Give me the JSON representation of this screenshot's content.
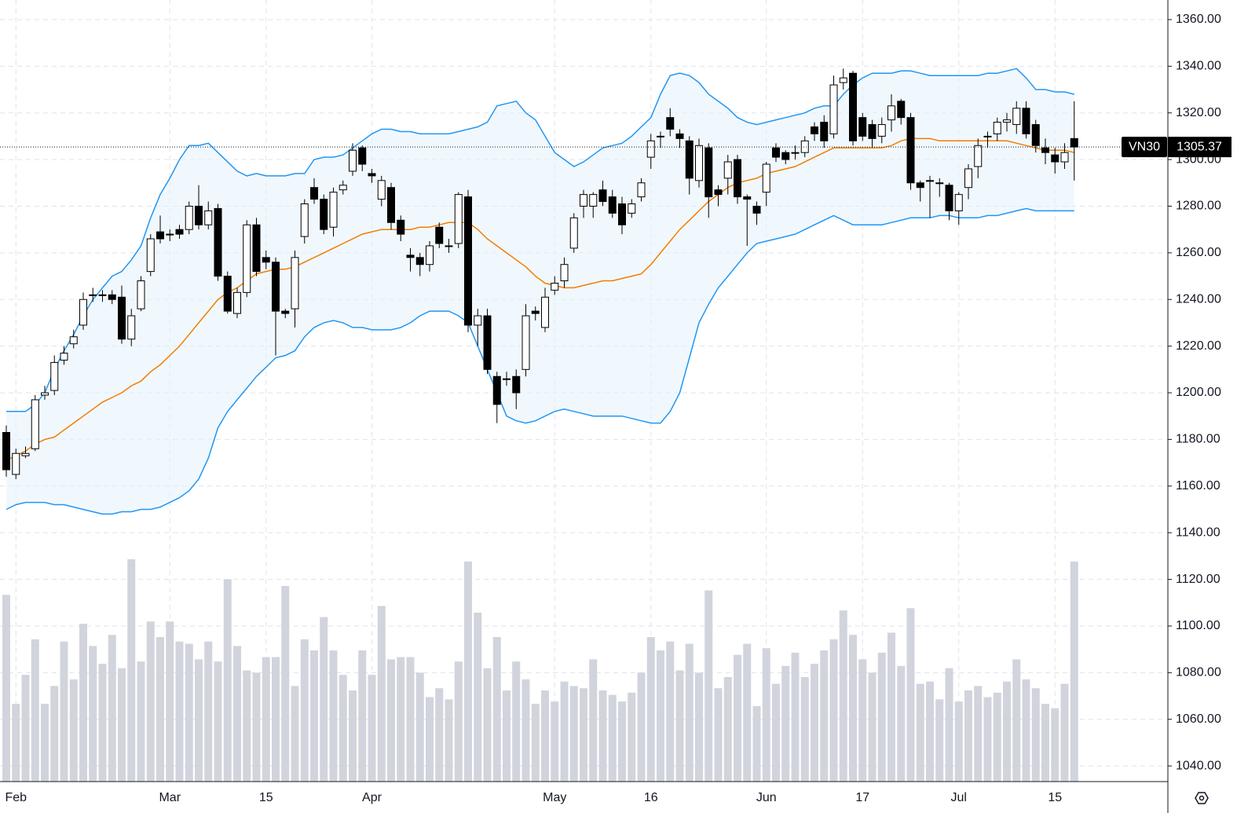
{
  "chart_data": {
    "type": "candlestick",
    "symbol": "VN30",
    "categories": [
      null,
      "Feb",
      null,
      null,
      null,
      null,
      null,
      null,
      null,
      null,
      null,
      null,
      null,
      null,
      null,
      null,
      null,
      "Mar",
      null,
      null,
      null,
      null,
      null,
      null,
      null,
      null,
      null,
      "15",
      null,
      null,
      null,
      null,
      null,
      null,
      null,
      null,
      null,
      null,
      "Apr",
      null,
      null,
      null,
      null,
      null,
      null,
      null,
      null,
      null,
      null,
      null,
      null,
      null,
      null,
      null,
      null,
      null,
      null,
      "May",
      null,
      null,
      null,
      null,
      null,
      null,
      null,
      null,
      null,
      "16",
      null,
      null,
      null,
      null,
      null,
      null,
      null,
      null,
      null,
      null,
      null,
      "Jun",
      null,
      null,
      null,
      null,
      null,
      null,
      null,
      null,
      null,
      "17",
      null,
      null,
      null,
      null,
      null,
      null,
      null,
      null,
      null,
      "Jul",
      null,
      null,
      null,
      null,
      null,
      null,
      null,
      null,
      null,
      "15",
      null,
      null
    ],
    "open": [
      1183,
      1165,
      1173,
      1176,
      1199,
      1201,
      1214,
      1221,
      1229,
      1242,
      1242,
      1242,
      1241,
      1223,
      1236,
      1252,
      1269,
      1268,
      1270,
      1270,
      1280,
      1272,
      1279,
      1250,
      1234,
      1243,
      1272,
      1258,
      1256,
      1235,
      1236,
      1267,
      1288,
      1283,
      1271,
      1287,
      1295,
      1305,
      1294,
      1283,
      1288,
      1274,
      1259,
      1258,
      1255,
      1271,
      1263,
      1264,
      1284,
      1229,
      1233,
      1207,
      1206,
      1207,
      1210,
      1235,
      1228,
      1244,
      1248,
      1262,
      1280,
      1280,
      1287,
      1284,
      1281,
      1277,
      1284,
      1301,
      1310,
      1318,
      1311,
      1308,
      1291,
      1305,
      1287,
      1292,
      1300,
      1284,
      1280,
      1286,
      1305,
      1303,
      1303,
      1303,
      1314,
      1316,
      1311,
      1333,
      1337,
      1318,
      1315,
      1310,
      1317,
      1325,
      1318,
      1290,
      1291,
      1290,
      1289,
      1278,
      1288,
      1297,
      1310,
      1311,
      1316,
      1315,
      1322,
      1315,
      1305,
      1302,
      1299,
      1309
    ],
    "high": [
      1186,
      1176,
      1177,
      1199,
      1203,
      1216,
      1220,
      1227,
      1243,
      1245,
      1244,
      1244,
      1246,
      1236,
      1250,
      1268,
      1276,
      1270,
      1272,
      1282,
      1289,
      1282,
      1281,
      1252,
      1245,
      1274,
      1275,
      1261,
      1258,
      1236,
      1261,
      1283,
      1292,
      1285,
      1288,
      1291,
      1307,
      1306,
      1296,
      1293,
      1290,
      1276,
      1262,
      1260,
      1265,
      1273,
      1266,
      1286,
      1287,
      1236,
      1236,
      1209,
      1209,
      1210,
      1238,
      1237,
      1245,
      1250,
      1258,
      1277,
      1287,
      1286,
      1291,
      1287,
      1284,
      1283,
      1292,
      1311,
      1312,
      1322,
      1313,
      1310,
      1309,
      1307,
      1289,
      1302,
      1302,
      1285,
      1282,
      1299,
      1307,
      1304,
      1306,
      1310,
      1316,
      1319,
      1336,
      1339,
      1338,
      1320,
      1317,
      1318,
      1328,
      1326,
      1320,
      1291,
      1293,
      1292,
      1290,
      1286,
      1298,
      1309,
      1312,
      1318,
      1320,
      1325,
      1325,
      1317,
      1309,
      1305,
      1307,
      1325
    ],
    "low": [
      1164,
      1163,
      1172,
      1175,
      1197,
      1199,
      1212,
      1219,
      1227,
      1239,
      1239,
      1238,
      1221,
      1220,
      1235,
      1250,
      1264,
      1265,
      1266,
      1268,
      1270,
      1270,
      1248,
      1234,
      1232,
      1241,
      1250,
      1253,
      1216,
      1232,
      1228,
      1264,
      1281,
      1268,
      1267,
      1285,
      1293,
      1295,
      1290,
      1280,
      1270,
      1265,
      1252,
      1250,
      1252,
      1262,
      1260,
      1262,
      1226,
      1220,
      1208,
      1187,
      1203,
      1193,
      1207,
      1231,
      1226,
      1242,
      1245,
      1260,
      1275,
      1275,
      1280,
      1275,
      1268,
      1275,
      1282,
      1296,
      1305,
      1310,
      1305,
      1285,
      1288,
      1275,
      1280,
      1285,
      1281,
      1263,
      1272,
      1280,
      1299,
      1298,
      1300,
      1301,
      1308,
      1305,
      1309,
      1330,
      1306,
      1308,
      1305,
      1307,
      1312,
      1315,
      1287,
      1282,
      1275,
      1284,
      1274,
      1272,
      1283,
      1292,
      1305,
      1308,
      1312,
      1311,
      1309,
      1303,
      1298,
      1294,
      1296,
      1291
    ],
    "close": [
      1167,
      1174,
      1174,
      1197,
      1200,
      1213,
      1217,
      1224,
      1240,
      1242,
      1242,
      1240,
      1223,
      1233,
      1248,
      1266,
      1266,
      1268,
      1268,
      1280,
      1272,
      1278,
      1250,
      1235,
      1243,
      1272,
      1252,
      1256,
      1235,
      1234,
      1258,
      1281,
      1283,
      1270,
      1286,
      1289,
      1304,
      1298,
      1293,
      1291,
      1273,
      1268,
      1258,
      1255,
      1263,
      1264,
      1263,
      1285,
      1229,
      1233,
      1210,
      1195,
      1206,
      1200,
      1233,
      1234,
      1241,
      1247,
      1255,
      1275,
      1285,
      1285,
      1282,
      1277,
      1272,
      1281,
      1290,
      1308,
      1310,
      1313,
      1309,
      1292,
      1306,
      1284,
      1285,
      1299,
      1284,
      1283,
      1277,
      1298,
      1301,
      1300,
      1303,
      1308,
      1311,
      1308,
      1332,
      1335,
      1308,
      1310,
      1309,
      1315,
      1323,
      1318,
      1290,
      1288,
      1291,
      1290,
      1278,
      1285,
      1296,
      1306,
      1310,
      1316,
      1317,
      1322,
      1311,
      1306,
      1303,
      1299,
      1303,
      1305.37
    ],
    "volume": [
      84,
      35,
      48,
      64,
      35,
      43,
      63,
      46,
      71,
      61,
      53,
      66,
      51,
      100,
      54,
      72,
      65,
      72,
      63,
      62,
      55,
      63,
      54,
      91,
      61,
      50,
      49,
      56,
      56,
      88,
      43,
      64,
      59,
      74,
      59,
      48,
      41,
      59,
      48,
      79,
      55,
      56,
      56,
      49,
      38,
      42,
      37,
      54,
      99,
      76,
      51,
      65,
      41,
      54,
      46,
      35,
      41,
      36,
      45,
      43,
      42,
      55,
      41,
      39,
      36,
      40,
      49,
      65,
      59,
      63,
      50,
      62,
      49,
      86,
      42,
      47,
      57,
      62,
      34,
      60,
      44,
      52,
      58,
      47,
      53,
      59,
      64,
      77,
      66,
      55,
      49,
      58,
      67,
      52,
      78,
      44,
      45,
      37,
      51,
      36,
      41,
      43,
      38,
      40,
      45,
      55,
      46,
      42,
      35,
      33,
      44,
      99
    ],
    "bands": {
      "upper": [
        1192,
        1192,
        1192,
        1195,
        1200,
        1210,
        1218,
        1225,
        1233,
        1240,
        1245,
        1250,
        1252,
        1257,
        1263,
        1275,
        1285,
        1292,
        1300,
        1306,
        1306,
        1307,
        1303,
        1299,
        1295,
        1293,
        1294,
        1293,
        1293,
        1293,
        1294,
        1294,
        1300,
        1301,
        1301,
        1302,
        1305,
        1308,
        1311,
        1313,
        1313,
        1312,
        1312,
        1311,
        1311,
        1311,
        1311,
        1312,
        1313,
        1314,
        1316,
        1323,
        1324,
        1325,
        1320,
        1317,
        1310,
        1303,
        1300,
        1297,
        1299,
        1302,
        1305,
        1306,
        1307,
        1310,
        1314,
        1318,
        1328,
        1336,
        1337,
        1336,
        1333,
        1328,
        1325,
        1322,
        1318,
        1316,
        1315,
        1316,
        1317,
        1318,
        1319,
        1320,
        1322,
        1323,
        1323,
        1328,
        1332,
        1335,
        1337,
        1337,
        1337,
        1338,
        1338,
        1337,
        1336,
        1336,
        1336,
        1336,
        1336,
        1336,
        1337,
        1337,
        1338,
        1339,
        1335,
        1330,
        1330,
        1329,
        1329,
        1328
      ],
      "middle": [
        1171,
        1173,
        1175,
        1178,
        1180,
        1181,
        1184,
        1187,
        1190,
        1193,
        1196,
        1198,
        1200,
        1203,
        1205,
        1209,
        1212,
        1216,
        1220,
        1225,
        1230,
        1235,
        1240,
        1243,
        1245,
        1248,
        1251,
        1252,
        1253,
        1253,
        1254,
        1256,
        1258,
        1260,
        1262,
        1264,
        1266,
        1268,
        1269,
        1270,
        1270,
        1270,
        1270,
        1271,
        1271,
        1272,
        1273,
        1273,
        1273,
        1270,
        1266,
        1263,
        1260,
        1257,
        1254,
        1250,
        1247,
        1246,
        1245,
        1245,
        1246,
        1247,
        1248,
        1248,
        1249,
        1250,
        1251,
        1255,
        1260,
        1265,
        1270,
        1274,
        1278,
        1282,
        1285,
        1288,
        1290,
        1291,
        1292,
        1294,
        1295,
        1296,
        1297,
        1299,
        1301,
        1303,
        1305,
        1305,
        1305,
        1305,
        1305,
        1305,
        1306,
        1308,
        1309,
        1309,
        1309,
        1308,
        1308,
        1308,
        1308,
        1308,
        1308,
        1308,
        1308,
        1307,
        1306,
        1305,
        1304,
        1304,
        1304,
        1303
      ],
      "lower": [
        1150,
        1152,
        1153,
        1153,
        1153,
        1152,
        1152,
        1151,
        1150,
        1149,
        1148,
        1148,
        1149,
        1149,
        1150,
        1150,
        1151,
        1153,
        1155,
        1158,
        1163,
        1172,
        1185,
        1192,
        1197,
        1202,
        1207,
        1211,
        1215,
        1216,
        1218,
        1224,
        1228,
        1230,
        1231,
        1230,
        1228,
        1228,
        1227,
        1227,
        1227,
        1228,
        1230,
        1233,
        1235,
        1235,
        1235,
        1233,
        1230,
        1220,
        1210,
        1200,
        1190,
        1188,
        1187,
        1188,
        1190,
        1192,
        1193,
        1192,
        1191,
        1190,
        1190,
        1190,
        1190,
        1189,
        1188,
        1187,
        1187,
        1192,
        1200,
        1215,
        1230,
        1238,
        1245,
        1250,
        1255,
        1260,
        1264,
        1265,
        1266,
        1267,
        1268,
        1270,
        1272,
        1274,
        1276,
        1274,
        1272,
        1272,
        1272,
        1272,
        1273,
        1274,
        1275,
        1275,
        1275,
        1276,
        1276,
        1275,
        1275,
        1275,
        1276,
        1276,
        1277,
        1278,
        1279,
        1278,
        1278,
        1278,
        1278,
        1278
      ]
    },
    "colors": {
      "up": "#ffffff",
      "down": "#000000",
      "outline": "#000000",
      "band": "#2196f3",
      "band_fill": "#e3f2fd",
      "middle": "#f57c00",
      "volume": "#d1d4dc"
    },
    "ylim": [
      1033.3,
      1368.4
    ],
    "yticks": [
      {
        "value": 1040,
        "label": "1040.00"
      },
      {
        "value": 1060,
        "label": "1060.00"
      },
      {
        "value": 1080,
        "label": "1080.00"
      },
      {
        "value": 1100,
        "label": "1100.00"
      },
      {
        "value": 1120,
        "label": "1120.00"
      },
      {
        "value": 1140,
        "label": "1140.00"
      },
      {
        "value": 1160,
        "label": "1160.00"
      },
      {
        "value": 1180,
        "label": "1180.00"
      },
      {
        "value": 1200,
        "label": "1200.00"
      },
      {
        "value": 1220,
        "label": "1220.00"
      },
      {
        "value": 1240,
        "label": "1240.00"
      },
      {
        "value": 1260,
        "label": "1260.00"
      },
      {
        "value": 1280,
        "label": "1280.00"
      },
      {
        "value": 1300,
        "label": "1300.00"
      },
      {
        "value": 1320,
        "label": "1320.00"
      },
      {
        "value": 1340,
        "label": "1340.00"
      },
      {
        "value": 1360,
        "label": "1360.00"
      }
    ],
    "grid": true
  }
}
